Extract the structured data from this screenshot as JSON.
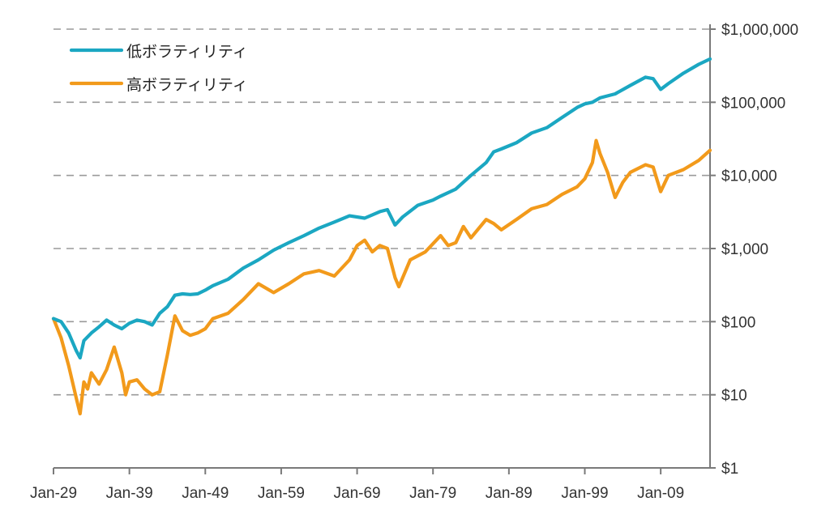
{
  "chart_data": {
    "type": "line",
    "title": "",
    "xlabel": "",
    "ylabel": "",
    "y_scale": "log",
    "ylim": [
      1,
      1000000
    ],
    "xlim": [
      1929,
      2015.5
    ],
    "grid": true,
    "legend_position": "top-left",
    "x_tick_labels": [
      "Jan-29",
      "Jan-39",
      "Jan-49",
      "Jan-59",
      "Jan-69",
      "Jan-79",
      "Jan-89",
      "Jan-99",
      "Jan-09"
    ],
    "x_tick_values": [
      1929,
      1939,
      1949,
      1959,
      1969,
      1979,
      1989,
      1999,
      2009
    ],
    "y_tick_labels": [
      "$1",
      "$10",
      "$100",
      "$1,000",
      "$10,000",
      "$100,000",
      "$1,000,000"
    ],
    "y_tick_values": [
      1,
      10,
      100,
      1000,
      10000,
      100000,
      1000000
    ],
    "series": [
      {
        "name": "低ボラティリティ",
        "color": "#1ba7c2",
        "x": [
          1929,
          1930,
          1931,
          1932,
          1932.5,
          1933,
          1934,
          1935,
          1936,
          1937,
          1938,
          1939,
          1940,
          1941,
          1942,
          1943,
          1944,
          1945,
          1946,
          1947,
          1948,
          1949,
          1950,
          1952,
          1954,
          1956,
          1958,
          1960,
          1962,
          1964,
          1966,
          1968,
          1970,
          1972,
          1973,
          1974,
          1975,
          1977,
          1979,
          1980,
          1982,
          1984,
          1986,
          1987,
          1988,
          1990,
          1992,
          1994,
          1996,
          1998,
          1999,
          2000,
          2001,
          2003,
          2005,
          2007,
          2008,
          2009,
          2010,
          2012,
          2014,
          2015.5
        ],
        "y": [
          110,
          100,
          70,
          40,
          32,
          55,
          70,
          85,
          105,
          90,
          80,
          95,
          105,
          100,
          90,
          130,
          160,
          230,
          240,
          235,
          240,
          270,
          310,
          380,
          540,
          700,
          950,
          1200,
          1500,
          1900,
          2300,
          2800,
          2600,
          3200,
          3400,
          2100,
          2700,
          3900,
          4600,
          5200,
          6500,
          10000,
          15000,
          21000,
          23000,
          28000,
          38000,
          45000,
          62000,
          85000,
          95000,
          100000,
          115000,
          130000,
          170000,
          220000,
          210000,
          150000,
          180000,
          250000,
          330000,
          390000
        ]
      },
      {
        "name": "高ボラティリティ",
        "color": "#f29a1b",
        "x": [
          1929,
          1930,
          1931,
          1932,
          1932.5,
          1933,
          1933.5,
          1934,
          1935,
          1936,
          1937,
          1938,
          1938.5,
          1939,
          1940,
          1941,
          1942,
          1943,
          1944,
          1945,
          1946,
          1947,
          1948,
          1949,
          1950,
          1952,
          1954,
          1956,
          1958,
          1960,
          1962,
          1964,
          1966,
          1968,
          1969,
          1970,
          1971,
          1972,
          1973,
          1974,
          1974.5,
          1976,
          1978,
          1980,
          1981,
          1982,
          1983,
          1984,
          1986,
          1987,
          1988,
          1990,
          1992,
          1994,
          1996,
          1998,
          1999,
          2000,
          2000.5,
          2001,
          2002,
          2003,
          2004,
          2005,
          2007,
          2008,
          2009,
          2010,
          2012,
          2014,
          2015.5
        ],
        "y": [
          110,
          60,
          25,
          9,
          5.5,
          15,
          12,
          20,
          14,
          22,
          45,
          20,
          10,
          15,
          16,
          12,
          10,
          11,
          35,
          120,
          75,
          65,
          70,
          80,
          110,
          130,
          200,
          330,
          250,
          330,
          450,
          500,
          420,
          700,
          1100,
          1300,
          900,
          1100,
          1000,
          400,
          300,
          700,
          900,
          1500,
          1100,
          1200,
          2000,
          1400,
          2500,
          2200,
          1800,
          2500,
          3500,
          4000,
          5500,
          7000,
          9000,
          15000,
          30000,
          20000,
          11000,
          5000,
          8000,
          11000,
          14000,
          13000,
          6000,
          10000,
          12000,
          16000,
          22000
        ]
      }
    ]
  }
}
